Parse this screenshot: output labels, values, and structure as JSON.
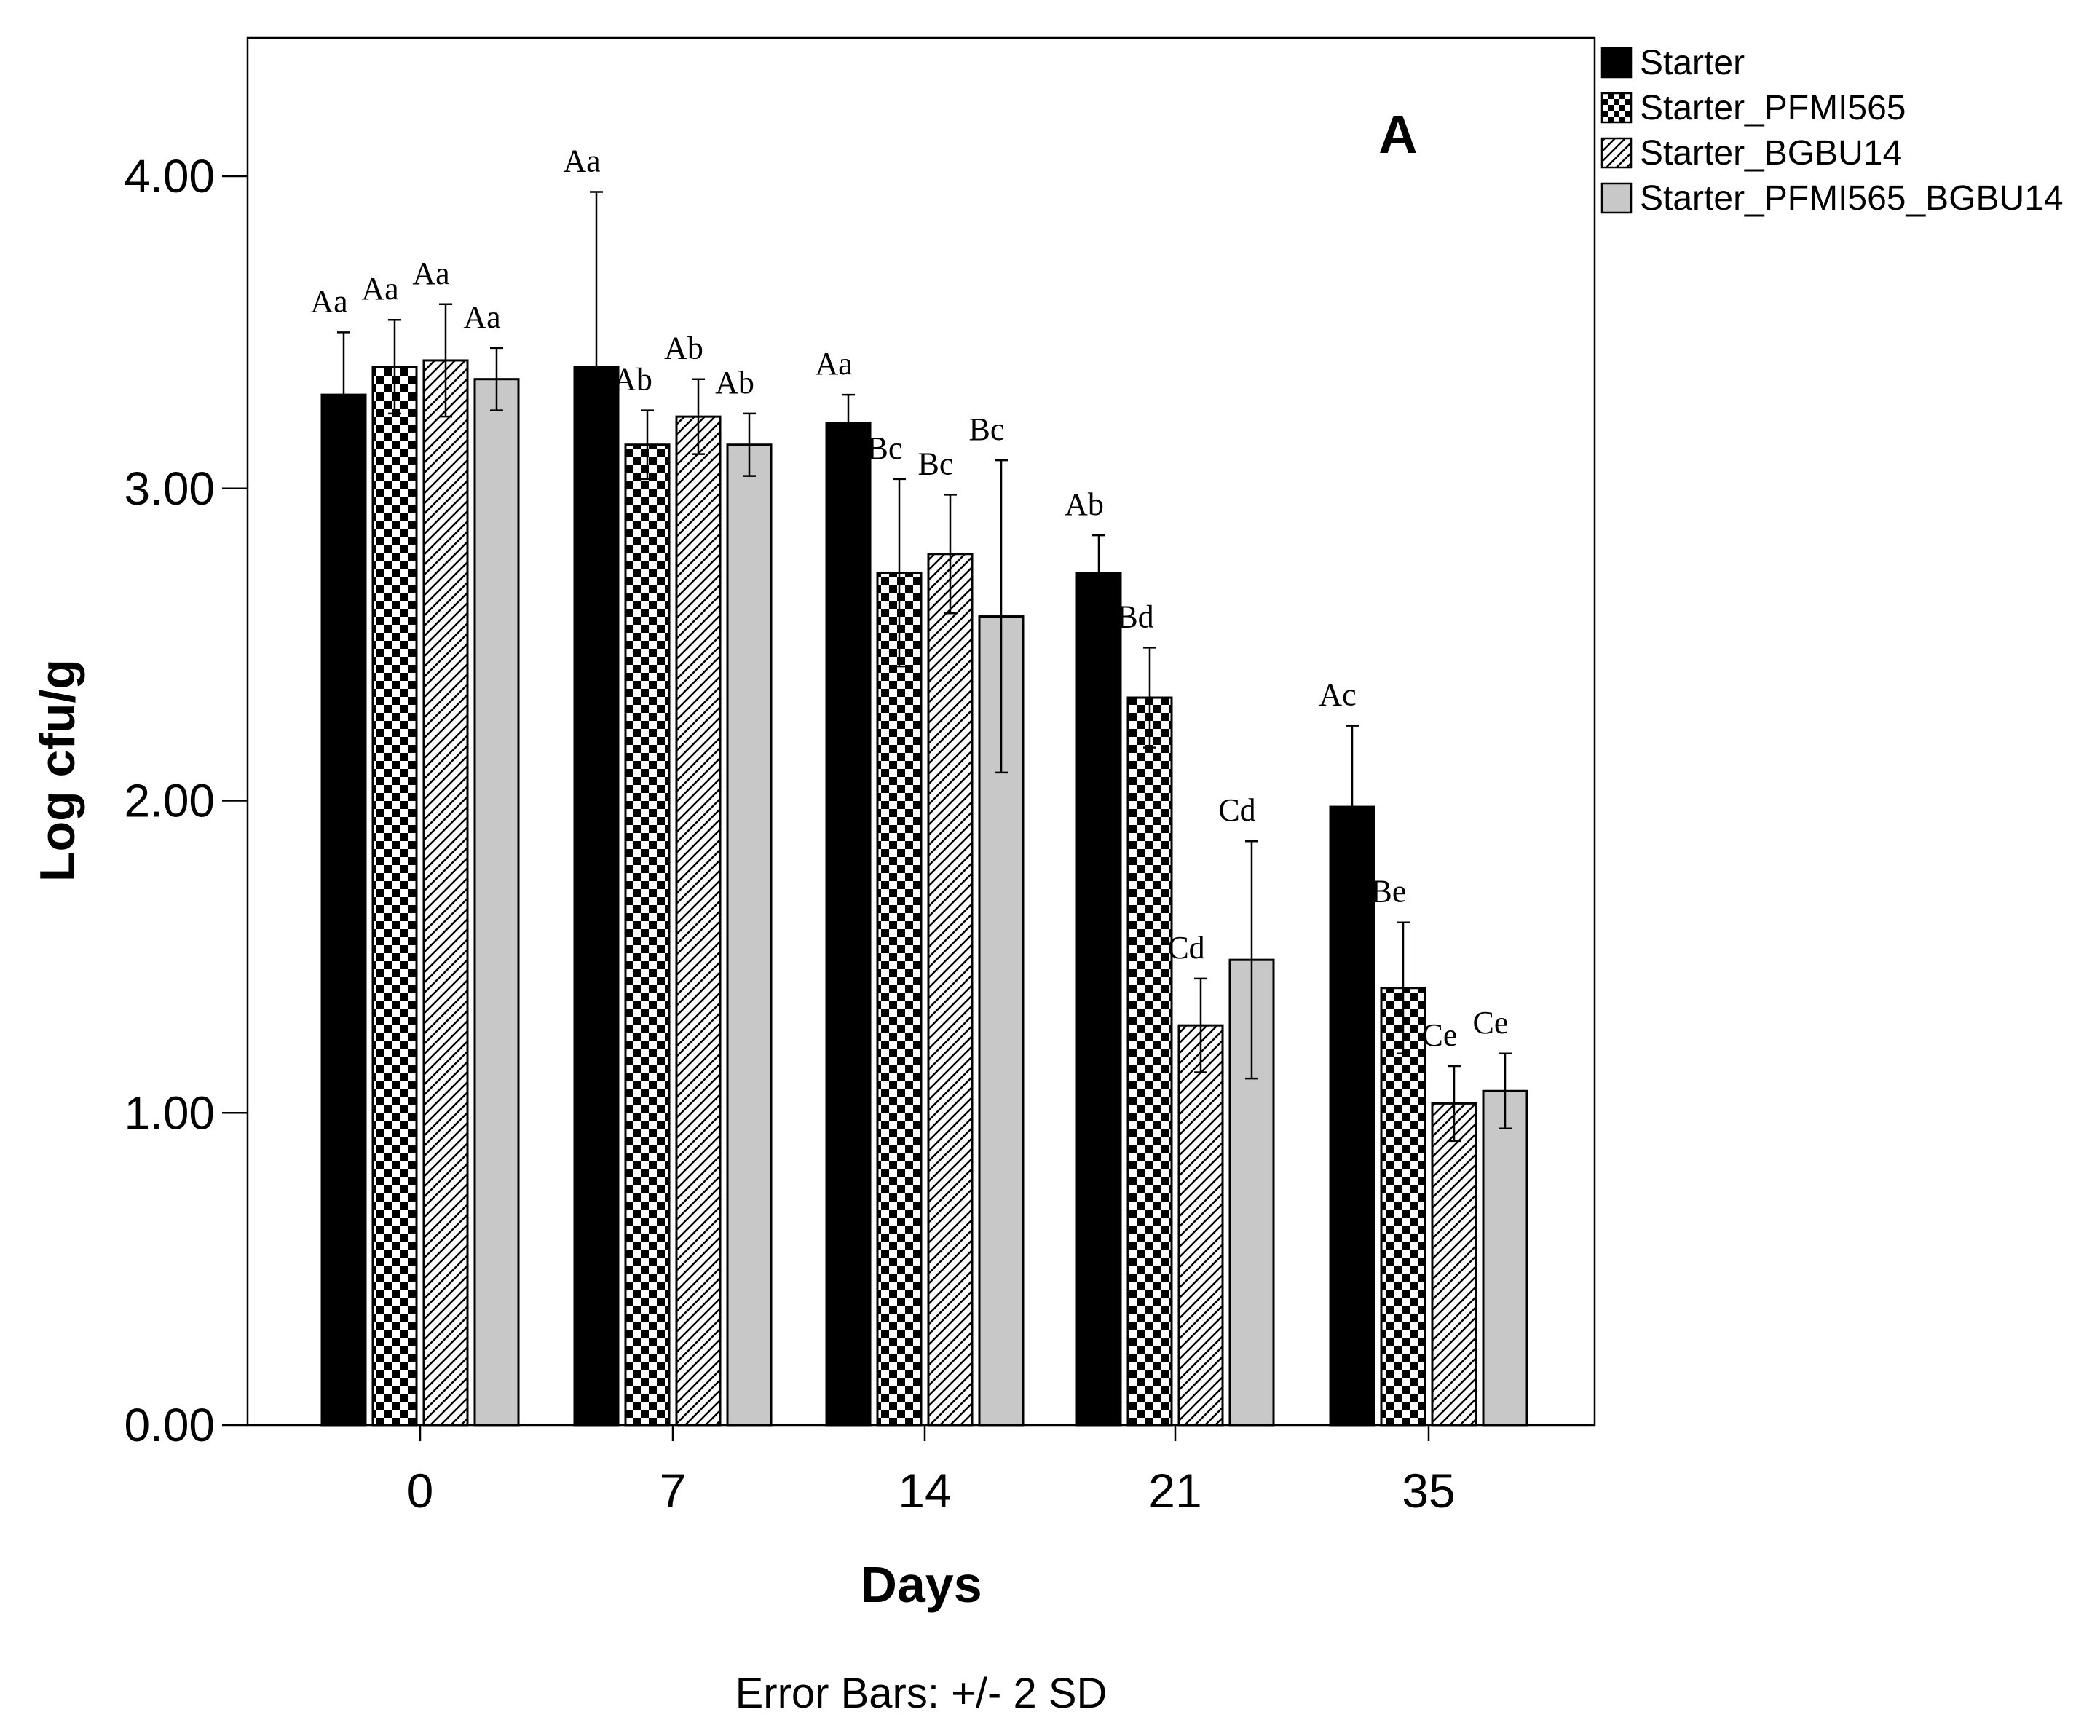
{
  "chart_data": {
    "type": "bar",
    "panel_label": "A",
    "xlabel": "Days",
    "ylabel": "Log cfu/g",
    "footnote": "Error Bars: +/- 2 SD",
    "categories": [
      "0",
      "7",
      "14",
      "21",
      "35"
    ],
    "ylim": [
      0,
      4.4
    ],
    "yticks": [
      0,
      1,
      2,
      3,
      4
    ],
    "ytick_labels": [
      "0.00",
      "1.00",
      "2.00",
      "3.00",
      "4.00"
    ],
    "grid": false,
    "legend_position": "top-right, outside plot",
    "series": [
      {
        "name": "Starter",
        "fill": "solid-black",
        "color": "#000000",
        "values": [
          3.3,
          3.39,
          3.21,
          2.73,
          1.98
        ],
        "errors": [
          0.2,
          0.56,
          0.09,
          0.12,
          0.26
        ],
        "letters": [
          "Aa",
          "Aa",
          "Aa",
          "Ab",
          "Ac"
        ]
      },
      {
        "name": "Starter_PFMI565",
        "fill": "checkerboard",
        "color": "#000000",
        "values": [
          3.39,
          3.14,
          2.73,
          2.33,
          1.4
        ],
        "errors": [
          0.15,
          0.11,
          0.3,
          0.16,
          0.21
        ],
        "letters": [
          "Aa",
          "Ab",
          "Bc",
          "Bd",
          "Be"
        ]
      },
      {
        "name": "Starter_BGBU14",
        "fill": "diagonal-hatch",
        "color": "#000000",
        "values": [
          3.41,
          3.23,
          2.79,
          1.28,
          1.03
        ],
        "errors": [
          0.18,
          0.12,
          0.19,
          0.15,
          0.12
        ],
        "letters": [
          "Aa",
          "Ab",
          "Bc",
          "Cd",
          "Ce"
        ]
      },
      {
        "name": "Starter_PFMI565_BGBU14",
        "fill": "solid-gray",
        "color": "#c8c8c8",
        "values": [
          3.35,
          3.14,
          2.59,
          1.49,
          1.07
        ],
        "errors": [
          0.1,
          0.1,
          0.5,
          0.38,
          0.12
        ],
        "letters": [
          "Aa",
          "Ab",
          "Bc",
          "Cd",
          "Ce"
        ]
      }
    ]
  }
}
